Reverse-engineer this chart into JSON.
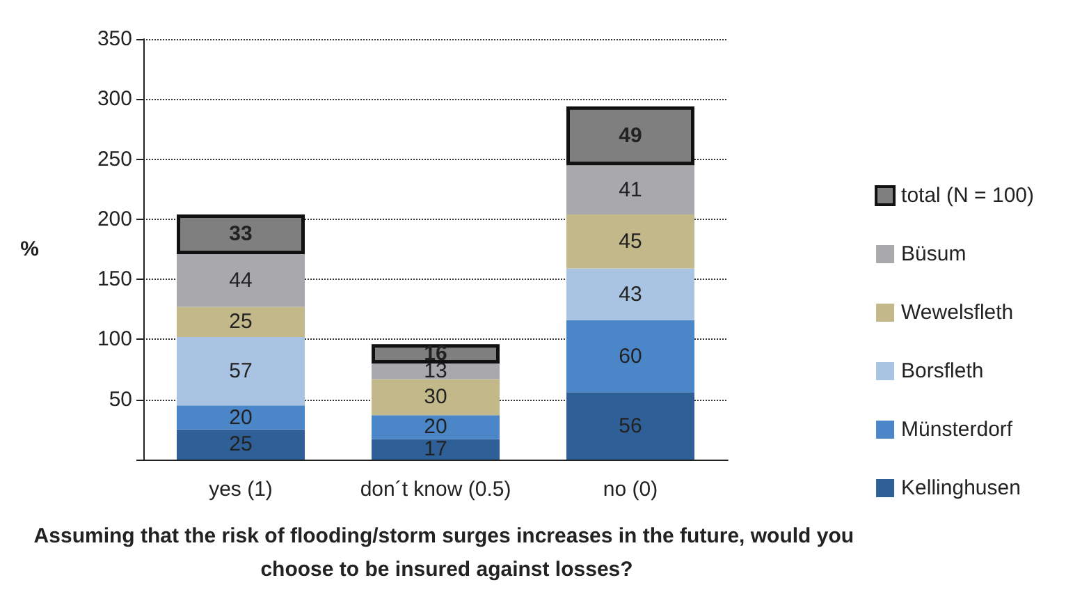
{
  "chart_data": {
    "type": "bar",
    "stacked": true,
    "title": "Assuming that the risk of flooding/storm surges increases in the future, would you choose to be insured against losses?",
    "ylabel": "%",
    "categories": [
      "yes (1)",
      "don´t know (0.5)",
      "no (0)"
    ],
    "series": [
      {
        "name": "Kellinghusen",
        "color": "#2e5f96",
        "values": [
          25,
          17,
          56
        ]
      },
      {
        "name": "Münsterdorf",
        "color": "#4a86c8",
        "values": [
          20,
          20,
          60
        ]
      },
      {
        "name": "Borsfleth",
        "color": "#a8c4e2",
        "values": [
          57,
          null,
          43
        ]
      },
      {
        "name": "Wewelsfleth",
        "color": "#c3b88a",
        "values": [
          25,
          30,
          45
        ]
      },
      {
        "name": "Büsum",
        "color": "#a9a9ad",
        "values": [
          44,
          13,
          41
        ]
      },
      {
        "name": "total (N = 100)",
        "color": "#7f7f80",
        "values": [
          33,
          16,
          49
        ]
      }
    ],
    "ylim": [
      0,
      350
    ],
    "yticks": [
      {
        "value": 0,
        "label": null
      },
      50,
      100,
      150,
      200,
      250,
      300,
      350
    ],
    "grid": "y",
    "legend": "right",
    "data_labels": true
  }
}
